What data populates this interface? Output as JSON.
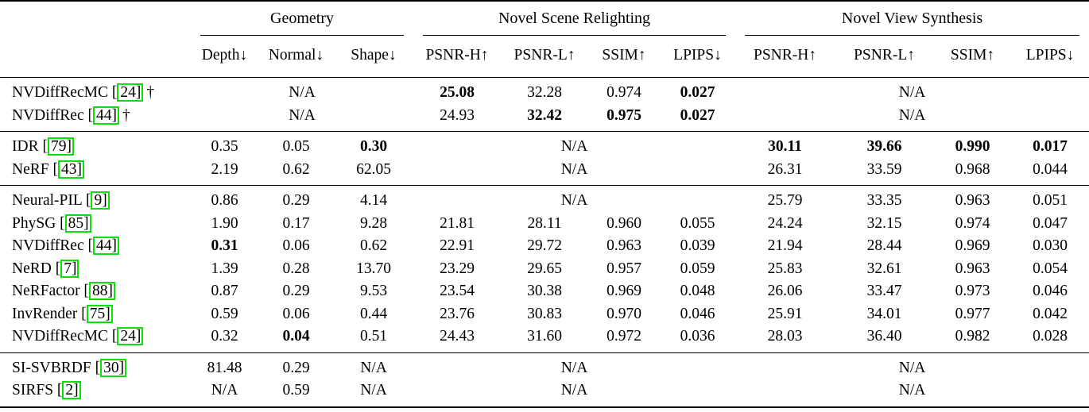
{
  "table": {
    "na_label": "N/A",
    "dagger": "†",
    "cite_prefix": " [",
    "cite_suffix": "]",
    "link_color": "#0ddf0d",
    "groups": [
      {
        "label": "Geometry",
        "span": 3
      },
      {
        "label": "Novel Scene Relighting",
        "span": 4
      },
      {
        "label": "Novel View Synthesis",
        "span": 4
      }
    ],
    "columns": [
      "Depth↓",
      "Normal↓",
      "Shape↓",
      "PSNR-H↑",
      "PSNR-L↑",
      "SSIM↑",
      "LPIPS↓",
      "PSNR-H↑",
      "PSNR-L↑",
      "SSIM↑",
      "LPIPS↓"
    ],
    "blocks": [
      {
        "rows": [
          {
            "method": "NVDiffRecMC",
            "cite": "24",
            "dagger": true,
            "geometry": {
              "na": true
            },
            "relighting": [
              {
                "v": "25.08",
                "bold": true
              },
              {
                "v": "32.28"
              },
              {
                "v": "0.974"
              },
              {
                "v": "0.027",
                "bold": true
              }
            ],
            "nvs": {
              "na": true
            }
          },
          {
            "method": "NVDiffRec",
            "cite": "44",
            "dagger": true,
            "geometry": {
              "na": true
            },
            "relighting": [
              {
                "v": "24.93"
              },
              {
                "v": "32.42",
                "bold": true
              },
              {
                "v": "0.975",
                "bold": true
              },
              {
                "v": "0.027",
                "bold": true
              }
            ],
            "nvs": {
              "na": true
            }
          }
        ]
      },
      {
        "rows": [
          {
            "method": "IDR",
            "cite": "79",
            "geometry": [
              {
                "v": "0.35"
              },
              {
                "v": "0.05"
              },
              {
                "v": "0.30",
                "bold": true
              }
            ],
            "relighting": {
              "na": true
            },
            "nvs": [
              {
                "v": "30.11",
                "bold": true
              },
              {
                "v": "39.66",
                "bold": true
              },
              {
                "v": "0.990",
                "bold": true
              },
              {
                "v": "0.017",
                "bold": true
              }
            ]
          },
          {
            "method": "NeRF",
            "cite": "43",
            "geometry": [
              {
                "v": "2.19"
              },
              {
                "v": "0.62"
              },
              {
                "v": "62.05"
              }
            ],
            "relighting": {
              "na": true
            },
            "nvs": [
              {
                "v": "26.31"
              },
              {
                "v": "33.59"
              },
              {
                "v": "0.968"
              },
              {
                "v": "0.044"
              }
            ]
          }
        ]
      },
      {
        "rows": [
          {
            "method": "Neural-PIL",
            "cite": "9",
            "geometry": [
              {
                "v": "0.86"
              },
              {
                "v": "0.29"
              },
              {
                "v": "4.14"
              }
            ],
            "relighting": {
              "na": true
            },
            "nvs": [
              {
                "v": "25.79"
              },
              {
                "v": "33.35"
              },
              {
                "v": "0.963"
              },
              {
                "v": "0.051"
              }
            ]
          },
          {
            "method": "PhySG",
            "cite": "85",
            "geometry": [
              {
                "v": "1.90"
              },
              {
                "v": "0.17"
              },
              {
                "v": "9.28"
              }
            ],
            "relighting": [
              {
                "v": "21.81"
              },
              {
                "v": "28.11"
              },
              {
                "v": "0.960"
              },
              {
                "v": "0.055"
              }
            ],
            "nvs": [
              {
                "v": "24.24"
              },
              {
                "v": "32.15"
              },
              {
                "v": "0.974"
              },
              {
                "v": "0.047"
              }
            ]
          },
          {
            "method": "NVDiffRec",
            "cite": "44",
            "geometry": [
              {
                "v": "0.31",
                "bold": true
              },
              {
                "v": "0.06"
              },
              {
                "v": "0.62"
              }
            ],
            "relighting": [
              {
                "v": "22.91"
              },
              {
                "v": "29.72"
              },
              {
                "v": "0.963"
              },
              {
                "v": "0.039"
              }
            ],
            "nvs": [
              {
                "v": "21.94"
              },
              {
                "v": "28.44"
              },
              {
                "v": "0.969"
              },
              {
                "v": "0.030"
              }
            ]
          },
          {
            "method": "NeRD",
            "cite": "7",
            "geometry": [
              {
                "v": "1.39"
              },
              {
                "v": "0.28"
              },
              {
                "v": "13.70"
              }
            ],
            "relighting": [
              {
                "v": "23.29"
              },
              {
                "v": "29.65"
              },
              {
                "v": "0.957"
              },
              {
                "v": "0.059"
              }
            ],
            "nvs": [
              {
                "v": "25.83"
              },
              {
                "v": "32.61"
              },
              {
                "v": "0.963"
              },
              {
                "v": "0.054"
              }
            ]
          },
          {
            "method": "NeRFactor",
            "cite": "88",
            "geometry": [
              {
                "v": "0.87"
              },
              {
                "v": "0.29"
              },
              {
                "v": "9.53"
              }
            ],
            "relighting": [
              {
                "v": "23.54"
              },
              {
                "v": "30.38"
              },
              {
                "v": "0.969"
              },
              {
                "v": "0.048"
              }
            ],
            "nvs": [
              {
                "v": "26.06"
              },
              {
                "v": "33.47"
              },
              {
                "v": "0.973"
              },
              {
                "v": "0.046"
              }
            ]
          },
          {
            "method": "InvRender",
            "cite": "75",
            "geometry": [
              {
                "v": "0.59"
              },
              {
                "v": "0.06"
              },
              {
                "v": "0.44"
              }
            ],
            "relighting": [
              {
                "v": "23.76"
              },
              {
                "v": "30.83"
              },
              {
                "v": "0.970"
              },
              {
                "v": "0.046"
              }
            ],
            "nvs": [
              {
                "v": "25.91"
              },
              {
                "v": "34.01"
              },
              {
                "v": "0.977"
              },
              {
                "v": "0.042"
              }
            ]
          },
          {
            "method": "NVDiffRecMC",
            "cite": "24",
            "geometry": [
              {
                "v": "0.32"
              },
              {
                "v": "0.04",
                "bold": true
              },
              {
                "v": "0.51"
              }
            ],
            "relighting": [
              {
                "v": "24.43"
              },
              {
                "v": "31.60"
              },
              {
                "v": "0.972"
              },
              {
                "v": "0.036"
              }
            ],
            "nvs": [
              {
                "v": "28.03"
              },
              {
                "v": "36.40"
              },
              {
                "v": "0.982"
              },
              {
                "v": "0.028"
              }
            ]
          }
        ]
      },
      {
        "rows": [
          {
            "method": "SI-SVBRDF",
            "cite": "30",
            "geometry": [
              {
                "v": "81.48"
              },
              {
                "v": "0.29"
              },
              {
                "v": "N/A"
              }
            ],
            "relighting": {
              "na": true
            },
            "nvs": {
              "na": true
            }
          },
          {
            "method": "SIRFS",
            "cite": "2",
            "geometry": [
              {
                "v": "N/A"
              },
              {
                "v": "0.59"
              },
              {
                "v": "N/A"
              }
            ],
            "relighting": {
              "na": true
            },
            "nvs": {
              "na": true
            }
          }
        ]
      }
    ]
  }
}
